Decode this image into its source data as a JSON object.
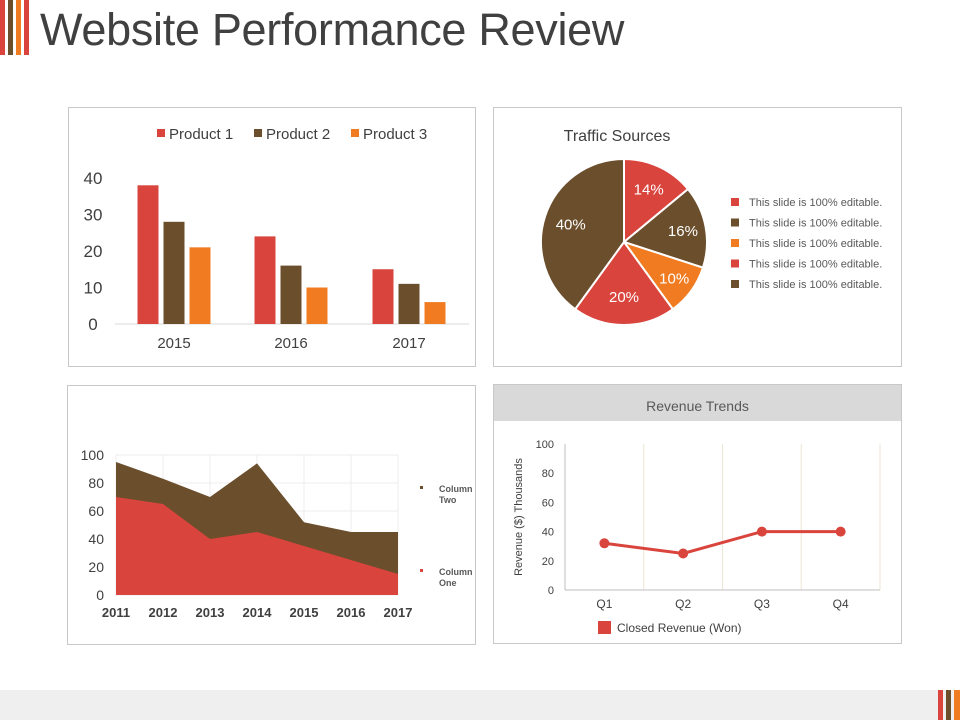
{
  "page": {
    "title": "Website Performance Review"
  },
  "colors": {
    "red": "#D9443D",
    "brown": "#6B4E2C",
    "orange": "#F07B20",
    "text": "#404040",
    "grid": "#e6e6e6"
  },
  "chart_data": [
    {
      "id": "product-bar-chart",
      "type": "bar",
      "categories": [
        "2015",
        "2016",
        "2017"
      ],
      "series": [
        {
          "name": "Product 1",
          "values": [
            38,
            24,
            15
          ],
          "color": "#D9443D"
        },
        {
          "name": "Product 2",
          "values": [
            28,
            16,
            11
          ],
          "color": "#6B4E2C"
        },
        {
          "name": "Product 3",
          "values": [
            21,
            10,
            6
          ],
          "color": "#F07B20"
        }
      ],
      "yticks": [
        "40",
        "30",
        "20",
        "10",
        "0"
      ],
      "ylim": [
        0,
        40
      ],
      "legend": "top"
    },
    {
      "id": "traffic-pie-chart",
      "type": "pie",
      "title": "Traffic Sources",
      "slices": [
        {
          "label": "14%",
          "value": 14,
          "color": "#D9443D",
          "legend": "This slide is 100% editable."
        },
        {
          "label": "16%",
          "value": 16,
          "color": "#6B4E2C",
          "legend": "This slide is 100% editable."
        },
        {
          "label": "10%",
          "value": 10,
          "color": "#F07B20",
          "legend": "This slide is 100% editable."
        },
        {
          "label": "20%",
          "value": 20,
          "color": "#D9443D",
          "legend": "This slide is 100% editable."
        },
        {
          "label": "40%",
          "value": 40,
          "color": "#6B4E2C",
          "legend": "This slide is 100% editable."
        }
      ],
      "legend": "right"
    },
    {
      "id": "column-area-chart",
      "type": "area",
      "x": [
        "2011",
        "2012",
        "2013",
        "2014",
        "2015",
        "2016",
        "2017"
      ],
      "series": [
        {
          "name": "Column One",
          "legend": [
            "Column",
            "One"
          ],
          "values": [
            70,
            65,
            40,
            45,
            35,
            25,
            15
          ],
          "color": "#D9443D"
        },
        {
          "name": "Column Two",
          "legend": [
            "Column",
            "Two"
          ],
          "values": [
            95,
            83,
            70,
            94,
            52,
            45,
            45
          ],
          "color": "#6B4E2C"
        }
      ],
      "yticks": [
        "100",
        "80",
        "60",
        "40",
        "20",
        "0"
      ],
      "ylim": [
        0,
        100
      ],
      "legend": "right"
    },
    {
      "id": "revenue-line-chart",
      "type": "line",
      "title": "Revenue Trends",
      "categories": [
        "Q1",
        "Q2",
        "Q3",
        "Q4"
      ],
      "series": [
        {
          "name": "Closed Revenue (Won)",
          "values": [
            32,
            25,
            40,
            40
          ],
          "color": "#D9443D"
        }
      ],
      "ylabel": "Revenue ($) Thousands",
      "yticks": [
        "100",
        "80",
        "60",
        "40",
        "20",
        "0"
      ],
      "ylim": [
        0,
        100
      ],
      "legend": "bottom"
    }
  ]
}
